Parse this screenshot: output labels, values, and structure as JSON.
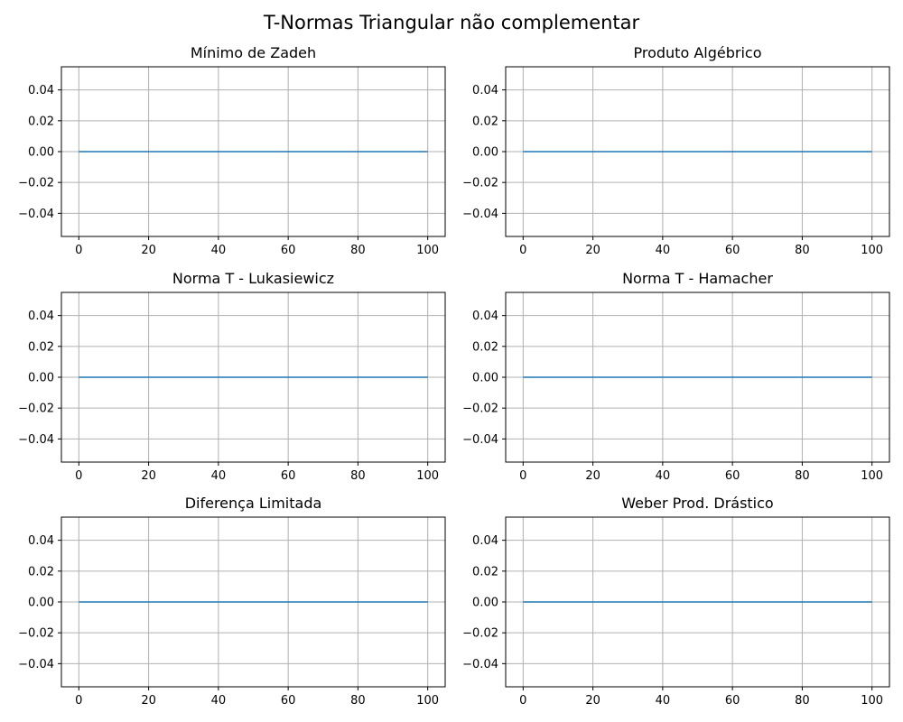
{
  "figure": {
    "suptitle": "T-Normas Triangular não complementar",
    "line_color": "#1f77b4",
    "grid_color": "#b0b0b0"
  },
  "chart_data": [
    {
      "type": "line",
      "title": "Mínimo de Zadeh",
      "xlabel": "",
      "ylabel": "",
      "xlim": [
        -5,
        105
      ],
      "ylim": [
        -0.055,
        0.055
      ],
      "xticks": [
        0,
        20,
        40,
        60,
        80,
        100
      ],
      "yticks": [
        0.04,
        0.02,
        0.0,
        -0.02,
        -0.04
      ],
      "ytick_labels": [
        "0.04",
        "0.02",
        "0.00",
        "−0.02",
        "−0.04"
      ],
      "grid": true,
      "series": [
        {
          "x": [
            0,
            100
          ],
          "y": [
            0,
            0
          ]
        }
      ]
    },
    {
      "type": "line",
      "title": "Produto Algébrico",
      "xlabel": "",
      "ylabel": "",
      "xlim": [
        -5,
        105
      ],
      "ylim": [
        -0.055,
        0.055
      ],
      "xticks": [
        0,
        20,
        40,
        60,
        80,
        100
      ],
      "yticks": [
        0.04,
        0.02,
        0.0,
        -0.02,
        -0.04
      ],
      "ytick_labels": [
        "0.04",
        "0.02",
        "0.00",
        "−0.02",
        "−0.04"
      ],
      "grid": true,
      "series": [
        {
          "x": [
            0,
            100
          ],
          "y": [
            0,
            0
          ]
        }
      ]
    },
    {
      "type": "line",
      "title": "Norma T - Lukasiewicz",
      "xlabel": "",
      "ylabel": "",
      "xlim": [
        -5,
        105
      ],
      "ylim": [
        -0.055,
        0.055
      ],
      "xticks": [
        0,
        20,
        40,
        60,
        80,
        100
      ],
      "yticks": [
        0.04,
        0.02,
        0.0,
        -0.02,
        -0.04
      ],
      "ytick_labels": [
        "0.04",
        "0.02",
        "0.00",
        "−0.02",
        "−0.04"
      ],
      "grid": true,
      "series": [
        {
          "x": [
            0,
            100
          ],
          "y": [
            0,
            0
          ]
        }
      ]
    },
    {
      "type": "line",
      "title": "Norma T - Hamacher",
      "xlabel": "",
      "ylabel": "",
      "xlim": [
        -5,
        105
      ],
      "ylim": [
        -0.055,
        0.055
      ],
      "xticks": [
        0,
        20,
        40,
        60,
        80,
        100
      ],
      "yticks": [
        0.04,
        0.02,
        0.0,
        -0.02,
        -0.04
      ],
      "ytick_labels": [
        "0.04",
        "0.02",
        "0.00",
        "−0.02",
        "−0.04"
      ],
      "grid": true,
      "series": [
        {
          "x": [
            0,
            100
          ],
          "y": [
            0,
            0
          ]
        }
      ]
    },
    {
      "type": "line",
      "title": "Diferença Limitada",
      "xlabel": "",
      "ylabel": "",
      "xlim": [
        -5,
        105
      ],
      "ylim": [
        -0.055,
        0.055
      ],
      "xticks": [
        0,
        20,
        40,
        60,
        80,
        100
      ],
      "yticks": [
        0.04,
        0.02,
        0.0,
        -0.02,
        -0.04
      ],
      "ytick_labels": [
        "0.04",
        "0.02",
        "0.00",
        "−0.02",
        "−0.04"
      ],
      "grid": true,
      "series": [
        {
          "x": [
            0,
            100
          ],
          "y": [
            0,
            0
          ]
        }
      ]
    },
    {
      "type": "line",
      "title": "Weber Prod. Drástico",
      "xlabel": "",
      "ylabel": "",
      "xlim": [
        -5,
        105
      ],
      "ylim": [
        -0.055,
        0.055
      ],
      "xticks": [
        0,
        20,
        40,
        60,
        80,
        100
      ],
      "yticks": [
        0.04,
        0.02,
        0.0,
        -0.02,
        -0.04
      ],
      "ytick_labels": [
        "0.04",
        "0.02",
        "0.00",
        "−0.02",
        "−0.04"
      ],
      "grid": true,
      "series": [
        {
          "x": [
            0,
            100
          ],
          "y": [
            0,
            0
          ]
        }
      ]
    }
  ]
}
